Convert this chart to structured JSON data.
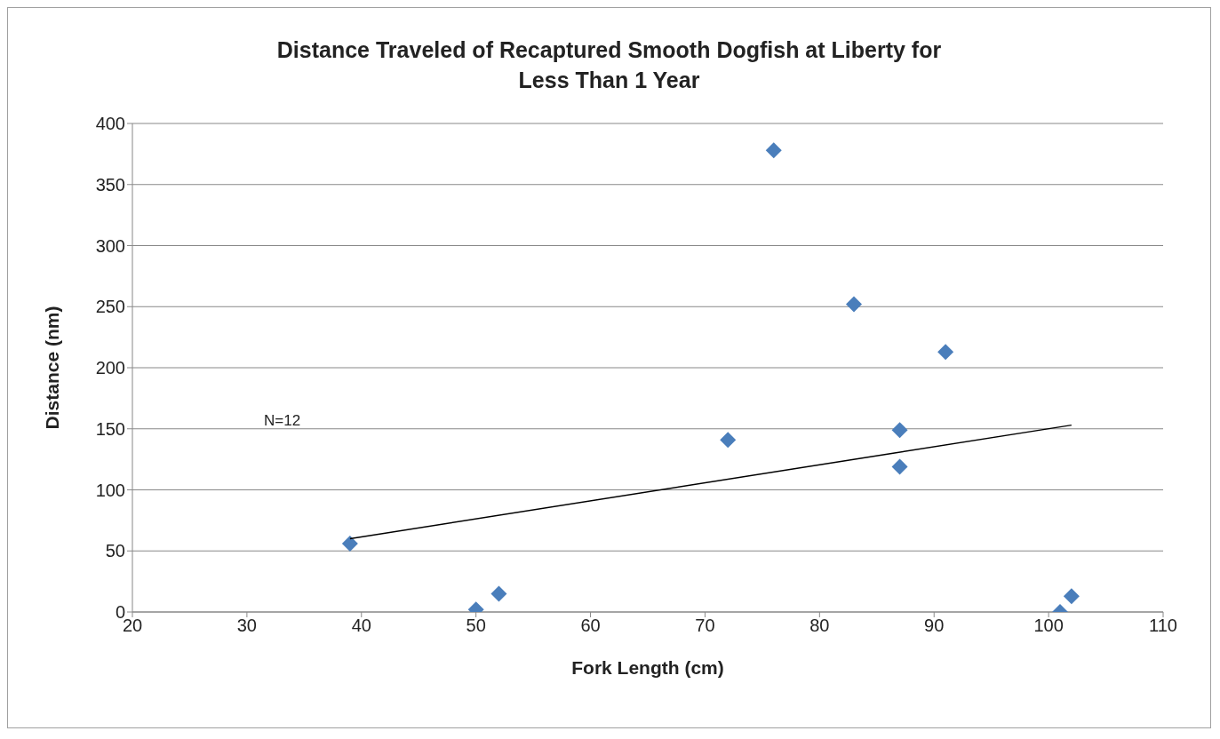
{
  "chart_data": {
    "type": "scatter",
    "title": "Distance Traveled of Recaptured Smooth Dogfish at Liberty for Less Than 1 Year",
    "xlabel": "Fork Length (cm)",
    "ylabel": "Distance (nm)",
    "annotations": [
      "N=12"
    ],
    "series": [
      {
        "color": "#4a7ebb",
        "x": [
          39,
          50,
          52,
          72,
          76,
          83,
          87,
          87,
          91,
          101,
          102
        ],
        "values": [
          56,
          2,
          15,
          141,
          378,
          252,
          149,
          119,
          213,
          0,
          13
        ]
      },
      {
        "type": "line",
        "marker": "none",
        "color": "#000000",
        "x": [
          39,
          102
        ],
        "values": [
          60,
          153
        ]
      }
    ],
    "marker": "diamond",
    "grid": "y",
    "xlim": [
      20,
      110
    ],
    "xticks": [
      20,
      30,
      40,
      50,
      60,
      70,
      80,
      90,
      100,
      110
    ],
    "ylim": [
      0,
      400
    ],
    "yticks": [
      0,
      50,
      100,
      150,
      200,
      250,
      300,
      350,
      400
    ]
  }
}
